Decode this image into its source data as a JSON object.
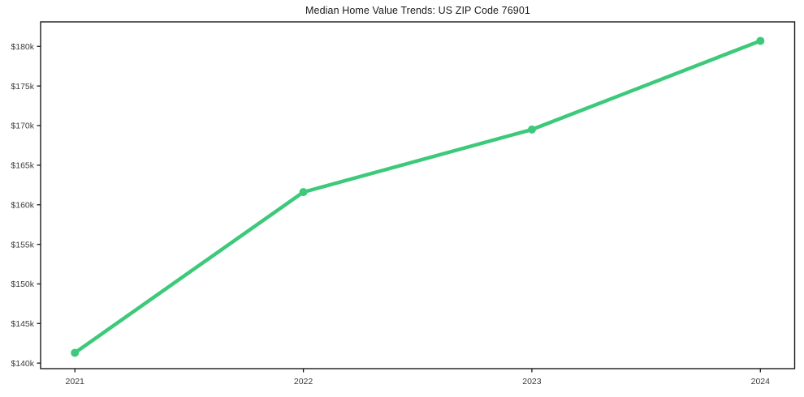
{
  "figure": {
    "background": "#ffffff"
  },
  "chart_data": {
    "type": "line",
    "title": "Median Home Value Trends: US ZIP Code 76901",
    "x": [
      2021,
      2022,
      2023,
      2024
    ],
    "x_tick_labels": [
      "2021",
      "2022",
      "2023",
      "2024"
    ],
    "values": [
      141300,
      161600,
      169500,
      180700
    ],
    "y_ticks": [
      140000,
      145000,
      150000,
      155000,
      160000,
      165000,
      170000,
      175000,
      180000
    ],
    "y_tick_labels": [
      "$140k",
      "$145k",
      "$150k",
      "$155k",
      "$160k",
      "$165k",
      "$170k",
      "$175k",
      "$180k"
    ],
    "xlabel": "",
    "ylabel": "",
    "xlim": [
      2020.85,
      2024.15
    ],
    "ylim": [
      139300,
      183100
    ],
    "grid": false,
    "legend": "none",
    "marker": "circle",
    "line_color": "#3dc97a",
    "axis_color": "#1a1a1a",
    "tick_label_color": "#3b3b3b"
  }
}
